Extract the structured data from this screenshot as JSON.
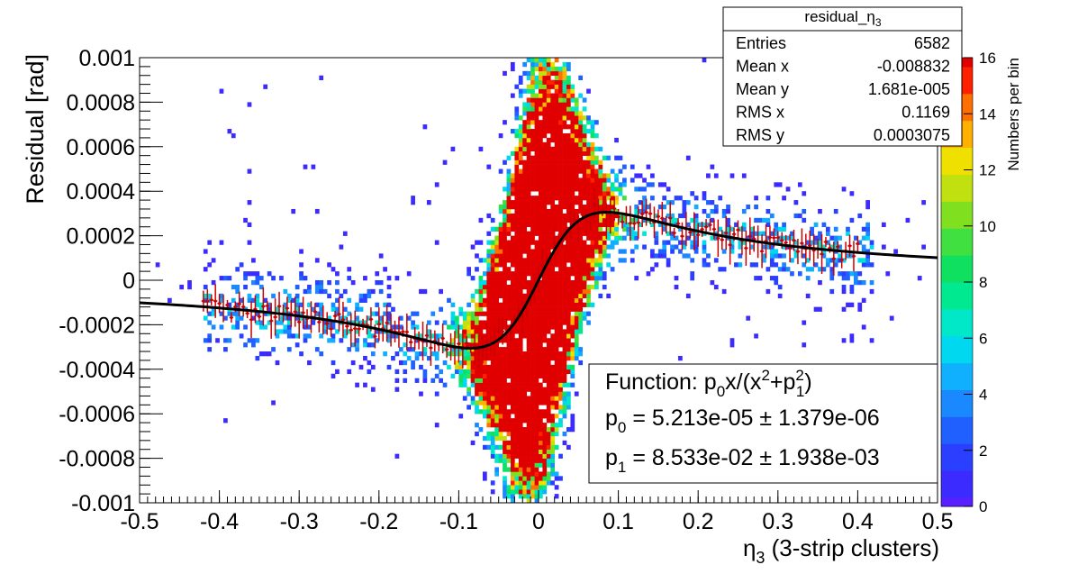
{
  "chart_data": {
    "type": "heatmap",
    "title": "",
    "xlabel": "η3 (3-strip clusters)",
    "xlabel_main": "η",
    "xlabel_sub": "3",
    "xlabel_rest": " (3-strip clusters)",
    "ylabel": "Residual [rad]",
    "xlim": [
      -0.5,
      0.5
    ],
    "ylim": [
      -0.001,
      0.001
    ],
    "x_ticks": [
      "-0.5",
      "-0.4",
      "-0.3",
      "-0.2",
      "-0.1",
      "0",
      "0.1",
      "0.2",
      "0.3",
      "0.4",
      "0.5"
    ],
    "x_tick_values": [
      -0.5,
      -0.4,
      -0.3,
      -0.2,
      -0.1,
      0,
      0.1,
      0.2,
      0.3,
      0.4,
      0.5
    ],
    "y_ticks": [
      "-0.001",
      "-0.0008",
      "-0.0006",
      "-0.0004",
      "-0.0002",
      "0",
      "0.0002",
      "0.0004",
      "0.0006",
      "0.0008",
      "0.001"
    ],
    "y_tick_values": [
      -0.001,
      -0.0008,
      -0.0006,
      -0.0004,
      -0.0002,
      0,
      0.0002,
      0.0004,
      0.0006,
      0.0008,
      0.001
    ],
    "colorbar": {
      "label": "Numbers per bin",
      "range": [
        0,
        16
      ],
      "ticks": [
        "0",
        "2",
        "4",
        "6",
        "8",
        "10",
        "12",
        "14",
        "16"
      ],
      "tick_values": [
        0,
        2,
        4,
        6,
        8,
        10,
        12,
        14,
        16
      ]
    },
    "stats": {
      "title_main": "residual_",
      "title_greek": "η",
      "title_sub": "3",
      "rows": [
        {
          "label": "Entries",
          "value": "6582"
        },
        {
          "label": "Mean x",
          "value": "-0.008832"
        },
        {
          "label": "Mean y",
          "value": "1.681e-005"
        },
        {
          "label": "RMS x",
          "value": "0.1169"
        },
        {
          "label": "RMS y",
          "value": "0.0003075"
        }
      ]
    },
    "fit": {
      "function_label": "Function: ",
      "p0_name": "p",
      "p0_sub": "0",
      "p0_value": " = 5.213e-05 ± 1.379e-06",
      "p1_name": "p",
      "p1_sub": "1",
      "p1_value": " = 8.533e-02 ± 1.938e-03",
      "p0": 5.213e-05,
      "p1": 0.08533,
      "x_range": [
        -0.5,
        0.5
      ]
    },
    "fit_curve_color": "#000000",
    "profile_color": "#cc0000",
    "profile_points_step": 0.005,
    "profile_x_range": [
      -0.42,
      0.4
    ]
  }
}
